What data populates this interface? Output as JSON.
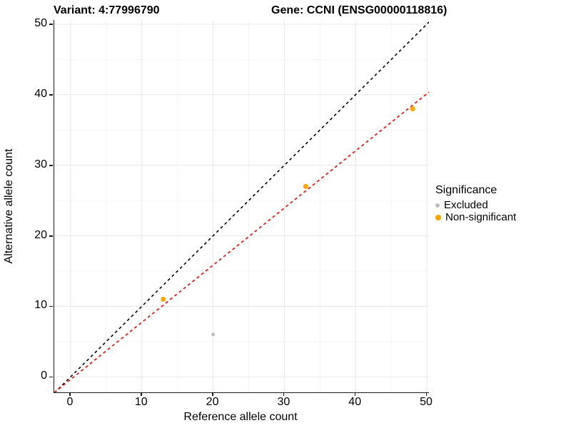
{
  "titles": {
    "variant": "Variant: 4:77996790",
    "gene": "Gene: CCNI (ENSG00000118816)"
  },
  "chart_data": {
    "type": "scatter",
    "xlabel": "Reference allele count",
    "ylabel": "Alternative allele count",
    "xlim": [
      -2.3,
      50.3
    ],
    "ylim": [
      -2.2,
      50.6
    ],
    "xticks": [
      0,
      10,
      20,
      30,
      40,
      50
    ],
    "yticks": [
      0,
      10,
      20,
      30,
      40,
      50
    ],
    "grid": {
      "major_color": "#EBEBEB",
      "minor_color": "#F5F5F5",
      "minor_step_offset": 5
    },
    "series": [
      {
        "name": "Excluded",
        "color": "#BDBDBD",
        "radius": 2.5,
        "points": [
          {
            "x": 20,
            "y": 6
          }
        ]
      },
      {
        "name": "Non-significant",
        "color": "#FFA500",
        "radius": 3.5,
        "points": [
          {
            "x": 13,
            "y": 11
          },
          {
            "x": 33,
            "y": 27
          },
          {
            "x": 48,
            "y": 38
          }
        ]
      }
    ],
    "lines": [
      {
        "name": "identity-line",
        "slope": 1,
        "intercept": 0,
        "color": "#000000",
        "dash": "4,4",
        "width": 1.6
      },
      {
        "name": "fit-line",
        "slope": 0.81,
        "intercept": -0.36,
        "color": "#FF0000",
        "dash": "4,4",
        "width": 1.6
      }
    ],
    "legend": {
      "title": "Significance",
      "entries": [
        {
          "label": "Excluded",
          "color": "#BDBDBD",
          "size": 6
        },
        {
          "label": "Non-significant",
          "color": "#FFA500",
          "size": 8
        }
      ]
    }
  }
}
